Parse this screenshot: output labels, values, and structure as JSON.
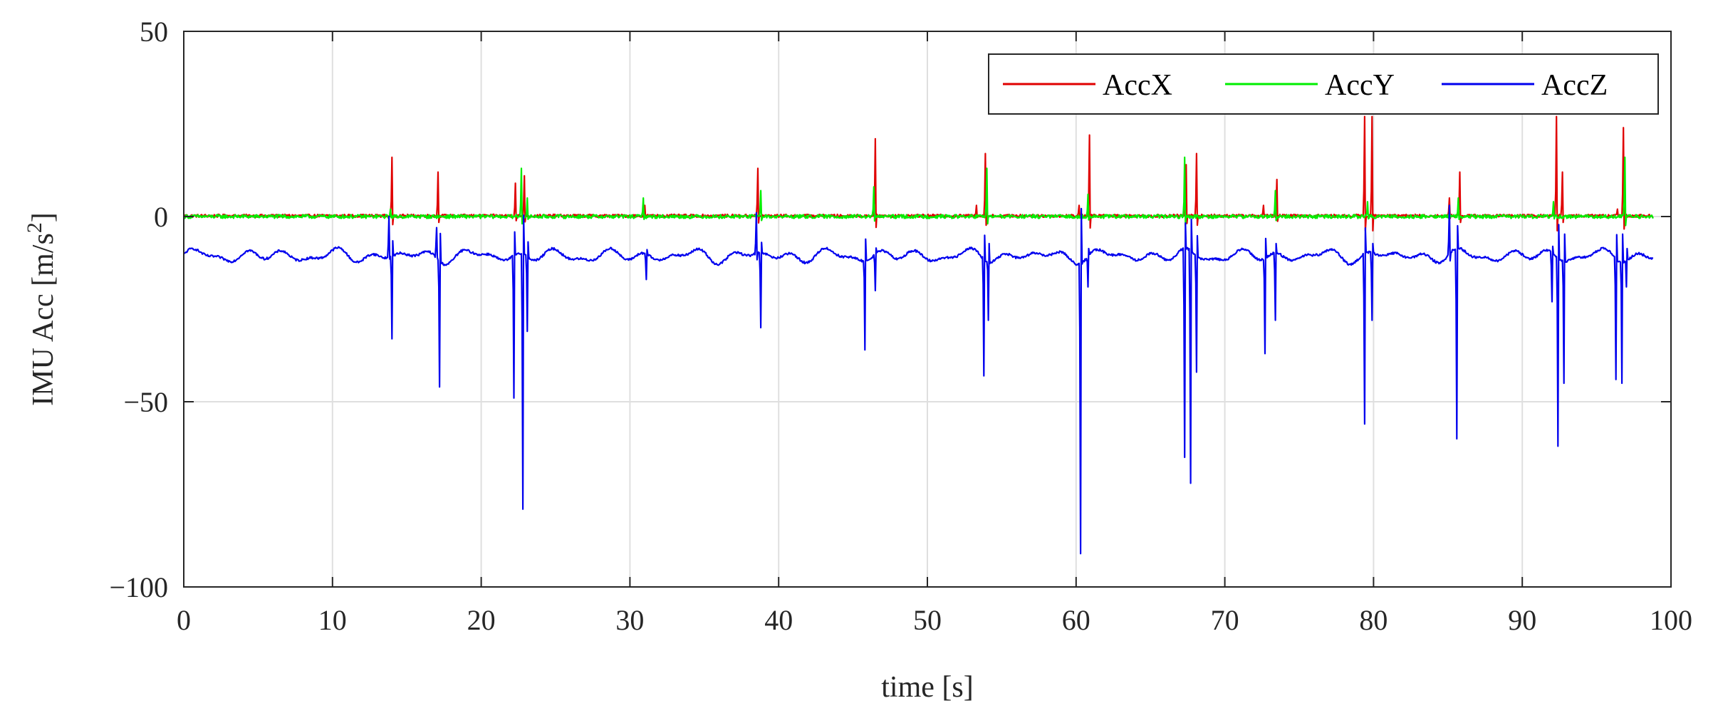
{
  "chart_data": {
    "type": "line",
    "title": "",
    "xlabel": "time [s]",
    "ylabel": "IMU Acc [m/s",
    "ylabel_superscript": "2",
    "ylabel_suffix": "]",
    "xlim": [
      0,
      100
    ],
    "ylim": [
      -100,
      50
    ],
    "x_ticks": [
      0,
      10,
      20,
      30,
      40,
      50,
      60,
      70,
      80,
      90,
      100
    ],
    "y_ticks": [
      -100,
      -50,
      0,
      50
    ],
    "x_tick_labels": [
      "0",
      "10",
      "20",
      "30",
      "40",
      "50",
      "60",
      "70",
      "80",
      "90",
      "100"
    ],
    "y_tick_labels": [
      "−100",
      "−50",
      "0",
      "50"
    ],
    "grid": true,
    "legend_position": "top-right",
    "x_end": 98.8,
    "series": [
      {
        "name": "AccX",
        "color": "#e00000",
        "baseline": 0.2,
        "noise": 0.4,
        "peaks": [
          {
            "t": 14.0,
            "v": 16
          },
          {
            "t": 17.1,
            "v": 12
          },
          {
            "t": 22.3,
            "v": 9
          },
          {
            "t": 22.9,
            "v": 11
          },
          {
            "t": 31.0,
            "v": 3
          },
          {
            "t": 38.6,
            "v": 13
          },
          {
            "t": 46.5,
            "v": 21
          },
          {
            "t": 53.3,
            "v": 3
          },
          {
            "t": 53.9,
            "v": 17
          },
          {
            "t": 60.2,
            "v": 3
          },
          {
            "t": 60.9,
            "v": 22
          },
          {
            "t": 67.4,
            "v": 14
          },
          {
            "t": 68.1,
            "v": 17
          },
          {
            "t": 72.6,
            "v": 3
          },
          {
            "t": 73.5,
            "v": 10
          },
          {
            "t": 79.4,
            "v": 27
          },
          {
            "t": 79.9,
            "v": 27
          },
          {
            "t": 85.1,
            "v": 5
          },
          {
            "t": 85.8,
            "v": 12
          },
          {
            "t": 92.3,
            "v": 27
          },
          {
            "t": 92.7,
            "v": 12
          },
          {
            "t": 96.4,
            "v": 2
          },
          {
            "t": 96.8,
            "v": 24
          }
        ]
      },
      {
        "name": "AccY",
        "color": "#00ee00",
        "baseline": 0.0,
        "noise": 0.5,
        "peaks": [
          {
            "t": 13.9,
            "v": 2
          },
          {
            "t": 22.7,
            "v": 13
          },
          {
            "t": 23.1,
            "v": 5
          },
          {
            "t": 30.9,
            "v": 5
          },
          {
            "t": 38.8,
            "v": 7
          },
          {
            "t": 46.4,
            "v": 8
          },
          {
            "t": 54.0,
            "v": 13
          },
          {
            "t": 60.8,
            "v": 6
          },
          {
            "t": 67.3,
            "v": 16
          },
          {
            "t": 73.4,
            "v": 7
          },
          {
            "t": 79.6,
            "v": 4
          },
          {
            "t": 85.7,
            "v": 5
          },
          {
            "t": 92.1,
            "v": 4
          },
          {
            "t": 96.9,
            "v": 16
          }
        ]
      },
      {
        "name": "AccZ",
        "color": "#0000ee",
        "baseline": -10,
        "noise": 0.3,
        "peaks": [
          {
            "t": 13.8,
            "v": 0
          },
          {
            "t": 14.0,
            "v": -33
          },
          {
            "t": 17.0,
            "v": -3
          },
          {
            "t": 17.2,
            "v": -46
          },
          {
            "t": 22.2,
            "v": -49
          },
          {
            "t": 22.8,
            "v": -79
          },
          {
            "t": 23.1,
            "v": -31
          },
          {
            "t": 31.1,
            "v": -17
          },
          {
            "t": 38.5,
            "v": 1
          },
          {
            "t": 38.8,
            "v": -30
          },
          {
            "t": 45.8,
            "v": -36
          },
          {
            "t": 46.5,
            "v": -20
          },
          {
            "t": 53.8,
            "v": -43
          },
          {
            "t": 54.1,
            "v": -28
          },
          {
            "t": 60.3,
            "v": -91
          },
          {
            "t": 60.8,
            "v": -19
          },
          {
            "t": 67.3,
            "v": -65
          },
          {
            "t": 67.7,
            "v": -72
          },
          {
            "t": 68.1,
            "v": -42
          },
          {
            "t": 72.7,
            "v": -37
          },
          {
            "t": 73.4,
            "v": -28
          },
          {
            "t": 79.4,
            "v": -56
          },
          {
            "t": 79.9,
            "v": -28
          },
          {
            "t": 85.1,
            "v": 3
          },
          {
            "t": 85.6,
            "v": -60
          },
          {
            "t": 92.0,
            "v": -23
          },
          {
            "t": 92.4,
            "v": -62
          },
          {
            "t": 92.8,
            "v": -45
          },
          {
            "t": 96.3,
            "v": -44
          },
          {
            "t": 96.7,
            "v": -45
          },
          {
            "t": 97.0,
            "v": -19
          }
        ]
      }
    ]
  }
}
